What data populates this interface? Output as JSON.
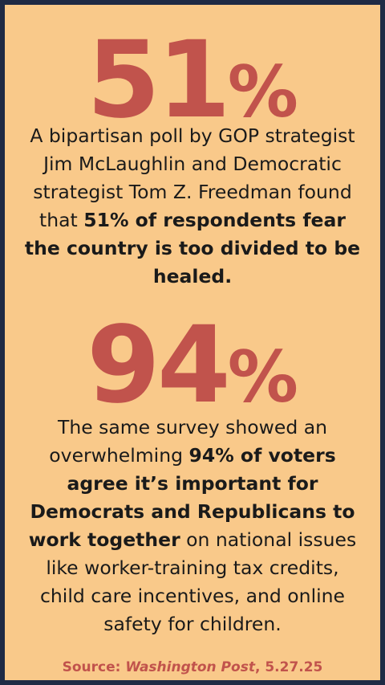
{
  "stat1": {
    "number": "51",
    "percent": "%",
    "text_before": "A bipartisan poll by GOP strategist Jim McLaughlin and Democratic strategist Tom Z. Freedman found that ",
    "text_bold": "51% of respondents fear the country is too divided to be healed.",
    "text_after": ""
  },
  "stat2": {
    "number": "94",
    "percent": "%",
    "text_before": "The same survey showed an overwhelming ",
    "text_bold": "94% of voters agree it’s important for Democrats and Republicans to work together",
    "text_after": " on national issues like worker-training tax credits, child care incentives, and online safety for children."
  },
  "source": {
    "label": "Source: ",
    "publication": "Washington Post",
    "date": ", 5.27.25"
  },
  "colors": {
    "background_frame": "#1f2a44",
    "card": "#f9c98a",
    "accent": "#c1534c",
    "text": "#1a1a1a"
  }
}
